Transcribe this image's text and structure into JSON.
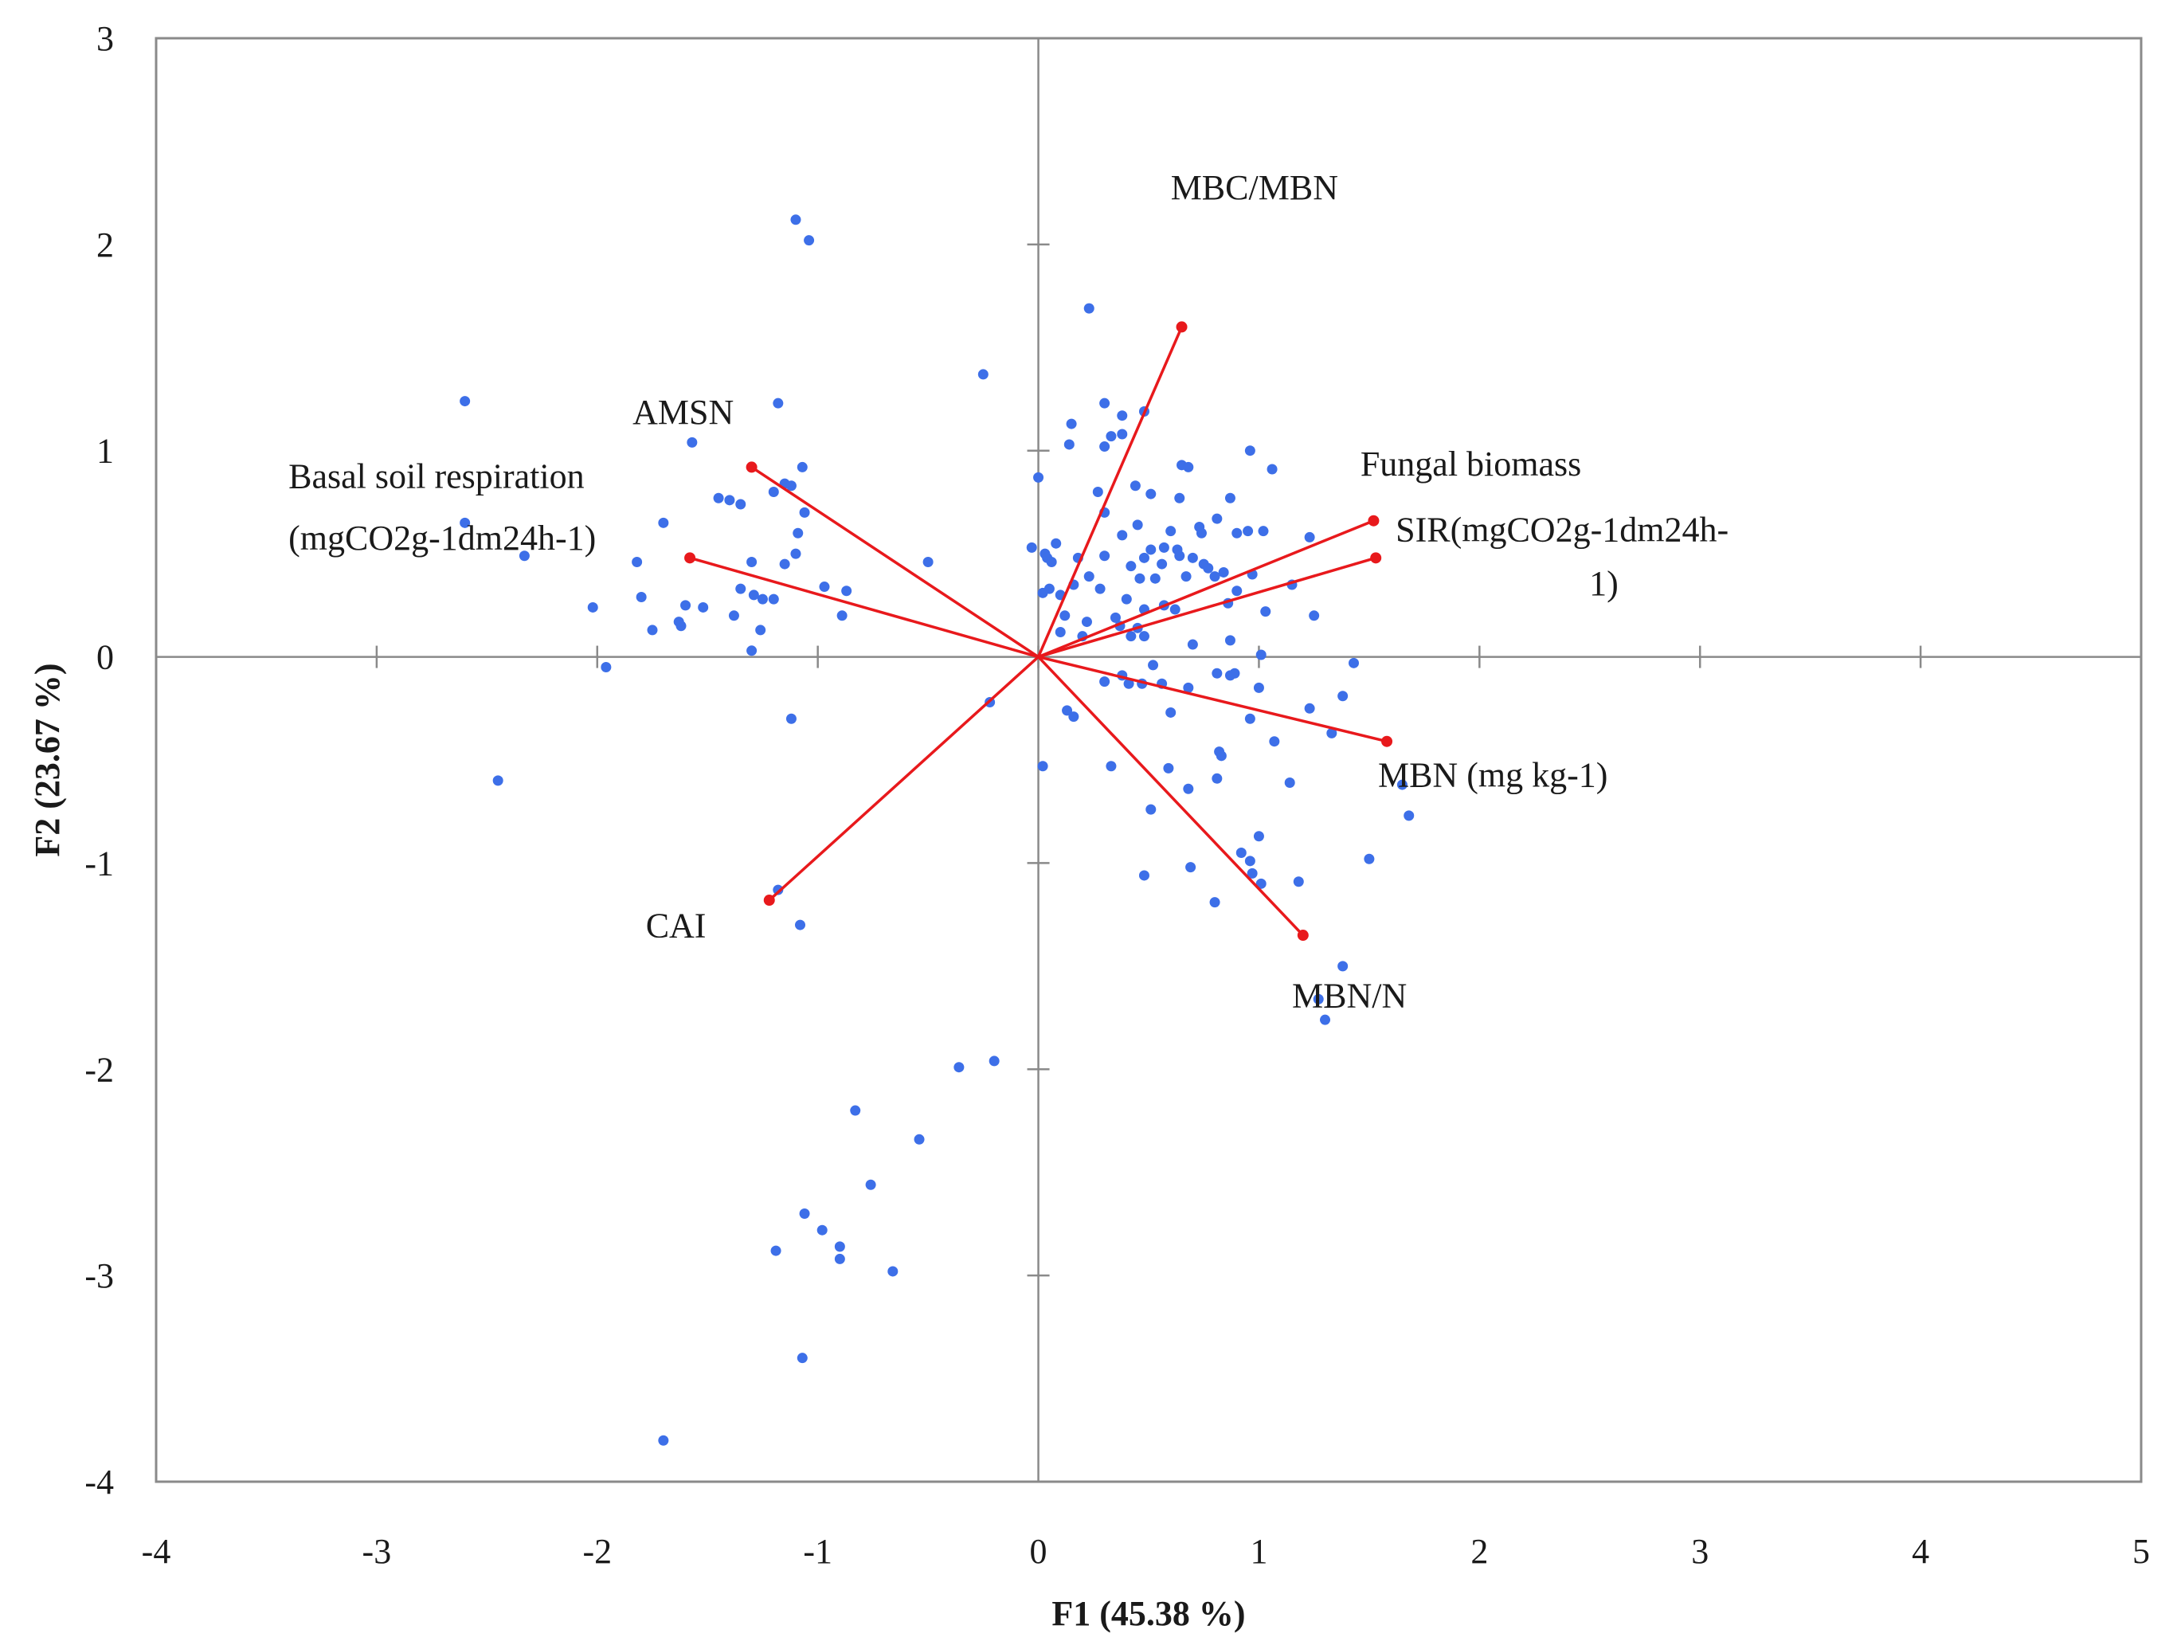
{
  "chart_data": {
    "type": "scatter",
    "subtype": "pca-biplot",
    "title": "",
    "xlabel": "F1 (45.38 %)",
    "ylabel": "F2 (23.67 %)",
    "xlim": [
      -4,
      5
    ],
    "ylim": [
      -4,
      3
    ],
    "x_ticks": [
      -4,
      -3,
      -2,
      -1,
      0,
      1,
      2,
      3,
      4,
      5
    ],
    "y_ticks": [
      -4,
      -3,
      -2,
      -1,
      0,
      1,
      2,
      3
    ],
    "grid": false,
    "colors": {
      "points": "#3d6fe8",
      "vectors": "#e8191c",
      "axes": "#8a8a8a"
    },
    "vectors": [
      {
        "name": "MBC/MBN",
        "x": 0.65,
        "y": 1.6,
        "label_lines": [
          "MBC/MBN"
        ]
      },
      {
        "name": "AMSN",
        "x": -1.3,
        "y": 0.92,
        "label_lines": [
          "AMSN"
        ]
      },
      {
        "name": "Basal soil respiration",
        "x": -1.58,
        "y": 0.48,
        "label_lines": [
          "Basal soil respiration",
          "(mgCO2g-1dm24h-1)"
        ]
      },
      {
        "name": "Fungal biomass",
        "x": 1.52,
        "y": 0.66,
        "label_lines": [
          "Fungal biomass"
        ]
      },
      {
        "name": "SIR",
        "x": 1.53,
        "y": 0.48,
        "label_lines": [
          "SIR(mgCO2g-1dm24h-",
          "1)"
        ]
      },
      {
        "name": "MBN (mg kg-1)",
        "x": 1.58,
        "y": -0.41,
        "label_lines": [
          "MBN (mg kg-1)"
        ]
      },
      {
        "name": "MBN/N",
        "x": 1.2,
        "y": -1.35,
        "label_lines": [
          "MBN/N"
        ]
      },
      {
        "name": "CAI",
        "x": -1.22,
        "y": -1.18,
        "label_lines": [
          "CAI"
        ]
      }
    ],
    "points": [
      [
        -1.1,
        2.12
      ],
      [
        -1.04,
        2.02
      ],
      [
        -2.6,
        1.24
      ],
      [
        -1.57,
        1.04
      ],
      [
        -1.18,
        1.23
      ],
      [
        -1.45,
        0.77
      ],
      [
        -1.4,
        0.76
      ],
      [
        -1.2,
        0.8
      ],
      [
        -1.15,
        0.84
      ],
      [
        -1.12,
        0.83
      ],
      [
        -1.07,
        0.92
      ],
      [
        -1.35,
        0.74
      ],
      [
        -1.7,
        0.65
      ],
      [
        -2.6,
        0.65
      ],
      [
        -2.33,
        0.49
      ],
      [
        -1.82,
        0.46
      ],
      [
        -1.3,
        0.46
      ],
      [
        -1.1,
        0.5
      ],
      [
        -1.15,
        0.45
      ],
      [
        -1.06,
        0.7
      ],
      [
        -1.09,
        0.6
      ],
      [
        -1.35,
        0.33
      ],
      [
        -1.29,
        0.3
      ],
      [
        -1.25,
        0.28
      ],
      [
        -1.2,
        0.28
      ],
      [
        -0.97,
        0.34
      ],
      [
        -0.87,
        0.32
      ],
      [
        -2.02,
        0.24
      ],
      [
        -1.8,
        0.29
      ],
      [
        -1.75,
        0.13
      ],
      [
        -1.62,
        0.15
      ],
      [
        -1.6,
        0.25
      ],
      [
        -1.63,
        0.17
      ],
      [
        -1.52,
        0.24
      ],
      [
        -1.38,
        0.2
      ],
      [
        -1.26,
        0.13
      ],
      [
        -1.3,
        0.03
      ],
      [
        -0.89,
        0.2
      ],
      [
        -1.96,
        -0.05
      ],
      [
        -1.12,
        -0.3
      ],
      [
        -2.45,
        -0.6
      ],
      [
        -0.5,
        0.46
      ],
      [
        -0.25,
        1.37
      ],
      [
        -0.22,
        -0.22
      ],
      [
        -1.18,
        -1.13
      ],
      [
        -1.08,
        -1.3
      ],
      [
        -0.36,
        -1.99
      ],
      [
        -0.2,
        -1.96
      ],
      [
        -0.83,
        -2.2
      ],
      [
        -0.54,
        -2.34
      ],
      [
        -0.76,
        -2.56
      ],
      [
        -1.06,
        -2.7
      ],
      [
        -0.98,
        -2.78
      ],
      [
        -0.9,
        -2.86
      ],
      [
        -0.9,
        -2.92
      ],
      [
        -1.19,
        -2.88
      ],
      [
        -0.66,
        -2.98
      ],
      [
        -1.07,
        -3.4
      ],
      [
        -1.7,
        -3.8
      ],
      [
        0.23,
        1.69
      ],
      [
        0.3,
        1.23
      ],
      [
        0.38,
        1.17
      ],
      [
        0.48,
        1.19
      ],
      [
        0.15,
        1.13
      ],
      [
        0.33,
        1.07
      ],
      [
        0.38,
        1.08
      ],
      [
        0.14,
        1.03
      ],
      [
        0.0,
        0.87
      ],
      [
        0.3,
        1.02
      ],
      [
        0.65,
        0.93
      ],
      [
        0.68,
        0.92
      ],
      [
        0.96,
        1.0
      ],
      [
        1.06,
        0.91
      ],
      [
        0.27,
        0.8
      ],
      [
        0.44,
        0.83
      ],
      [
        0.51,
        0.79
      ],
      [
        0.64,
        0.77
      ],
      [
        0.81,
        0.67
      ],
      [
        0.87,
        0.77
      ],
      [
        0.3,
        0.7
      ],
      [
        0.45,
        0.64
      ],
      [
        0.6,
        0.61
      ],
      [
        0.73,
        0.63
      ],
      [
        0.74,
        0.6
      ],
      [
        0.9,
        0.6
      ],
      [
        0.95,
        0.61
      ],
      [
        1.02,
        0.61
      ],
      [
        1.23,
        0.58
      ],
      [
        0.38,
        0.59
      ],
      [
        0.51,
        0.52
      ],
      [
        0.57,
        0.53
      ],
      [
        0.63,
        0.52
      ],
      [
        0.64,
        0.49
      ],
      [
        -0.03,
        0.53
      ],
      [
        0.08,
        0.55
      ],
      [
        0.03,
        0.5
      ],
      [
        0.04,
        0.48
      ],
      [
        0.06,
        0.46
      ],
      [
        0.18,
        0.48
      ],
      [
        0.3,
        0.49
      ],
      [
        0.42,
        0.44
      ],
      [
        0.48,
        0.48
      ],
      [
        0.56,
        0.45
      ],
      [
        0.7,
        0.48
      ],
      [
        0.75,
        0.45
      ],
      [
        0.77,
        0.43
      ],
      [
        0.84,
        0.41
      ],
      [
        0.8,
        0.39
      ],
      [
        0.67,
        0.39
      ],
      [
        0.23,
        0.39
      ],
      [
        0.46,
        0.38
      ],
      [
        0.53,
        0.38
      ],
      [
        0.97,
        0.4
      ],
      [
        0.9,
        0.32
      ],
      [
        1.15,
        0.35
      ],
      [
        1.25,
        0.2
      ],
      [
        0.02,
        0.31
      ],
      [
        0.05,
        0.33
      ],
      [
        0.1,
        0.3
      ],
      [
        0.16,
        0.35
      ],
      [
        0.28,
        0.33
      ],
      [
        0.4,
        0.28
      ],
      [
        0.48,
        0.23
      ],
      [
        0.35,
        0.19
      ],
      [
        0.57,
        0.25
      ],
      [
        0.62,
        0.23
      ],
      [
        0.86,
        0.26
      ],
      [
        1.03,
        0.22
      ],
      [
        0.12,
        0.2
      ],
      [
        0.22,
        0.17
      ],
      [
        0.37,
        0.15
      ],
      [
        0.45,
        0.14
      ],
      [
        0.48,
        0.1
      ],
      [
        0.1,
        0.12
      ],
      [
        0.2,
        0.1
      ],
      [
        0.42,
        0.1
      ],
      [
        0.7,
        0.06
      ],
      [
        0.87,
        0.08
      ],
      [
        1.01,
        0.01
      ],
      [
        1.43,
        -0.03
      ],
      [
        0.52,
        -0.04
      ],
      [
        0.81,
        -0.08
      ],
      [
        0.87,
        -0.09
      ],
      [
        0.89,
        -0.08
      ],
      [
        0.3,
        -0.12
      ],
      [
        0.38,
        -0.09
      ],
      [
        0.41,
        -0.13
      ],
      [
        0.47,
        -0.13
      ],
      [
        0.56,
        -0.13
      ],
      [
        0.68,
        -0.15
      ],
      [
        1.0,
        -0.15
      ],
      [
        1.38,
        -0.19
      ],
      [
        0.13,
        -0.26
      ],
      [
        0.6,
        -0.27
      ],
      [
        0.96,
        -0.3
      ],
      [
        1.23,
        -0.25
      ],
      [
        1.33,
        -0.37
      ],
      [
        0.16,
        -0.29
      ],
      [
        0.82,
        -0.46
      ],
      [
        1.07,
        -0.41
      ],
      [
        0.02,
        -0.53
      ],
      [
        0.33,
        -0.53
      ],
      [
        0.59,
        -0.54
      ],
      [
        0.81,
        -0.59
      ],
      [
        1.14,
        -0.61
      ],
      [
        1.65,
        -0.62
      ],
      [
        0.68,
        -0.64
      ],
      [
        0.51,
        -0.74
      ],
      [
        1.68,
        -0.77
      ],
      [
        0.83,
        -0.48
      ],
      [
        1.0,
        -0.87
      ],
      [
        0.92,
        -0.95
      ],
      [
        0.96,
        -0.99
      ],
      [
        0.97,
        -1.05
      ],
      [
        1.01,
        -1.1
      ],
      [
        1.18,
        -1.09
      ],
      [
        1.5,
        -0.98
      ],
      [
        0.48,
        -1.06
      ],
      [
        0.69,
        -1.02
      ],
      [
        0.8,
        -1.19
      ],
      [
        1.27,
        -1.66
      ],
      [
        1.3,
        -1.76
      ],
      [
        1.38,
        -1.5
      ]
    ]
  }
}
